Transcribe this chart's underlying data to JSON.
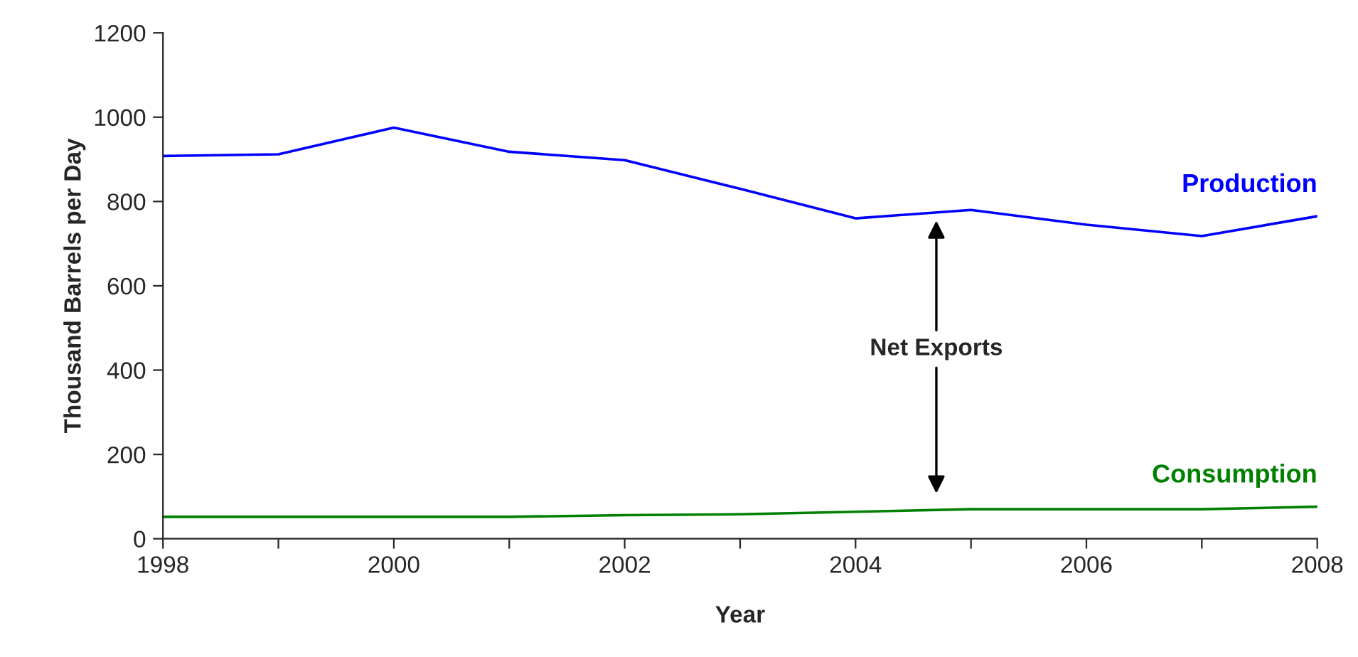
{
  "chart_data": {
    "type": "line",
    "xlabel": "Year",
    "ylabel": "Thousand Barrels per Day",
    "x": [
      1998,
      1999,
      2000,
      2001,
      2002,
      2003,
      2004,
      2005,
      2006,
      2007,
      2008
    ],
    "series": [
      {
        "name": "Production",
        "color": "#0000ff",
        "values": [
          908,
          912,
          975,
          918,
          898,
          830,
          760,
          780,
          745,
          718,
          765
        ]
      },
      {
        "name": "Consumption",
        "color": "#008000",
        "values": [
          52,
          52,
          52,
          52,
          56,
          58,
          64,
          70,
          70,
          70,
          76
        ]
      }
    ],
    "annotations": [
      "Net Exports"
    ],
    "xlim": [
      1998,
      2008
    ],
    "ylim": [
      0,
      1200
    ],
    "xticks": [
      1998,
      {
        "value": 1999,
        "label": null
      },
      2000,
      {
        "value": 2001,
        "label": null
      },
      2002,
      {
        "value": 2003,
        "label": null
      },
      2004,
      {
        "value": 2005,
        "label": null
      },
      2006,
      {
        "value": 2007,
        "label": null
      },
      2008
    ],
    "yticks": [
      0,
      200,
      400,
      600,
      800,
      1000,
      1200
    ],
    "grid": false,
    "legend": false,
    "marker": "none",
    "line_style": "solid"
  }
}
